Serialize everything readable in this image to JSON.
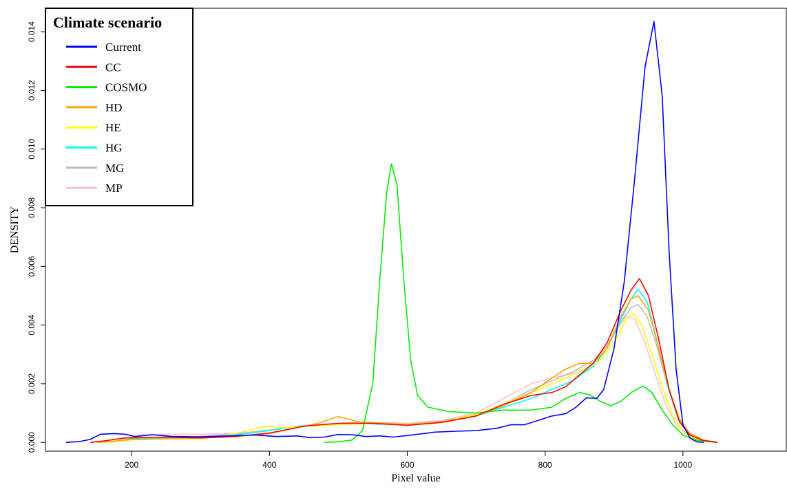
{
  "chart_data": {
    "type": "line",
    "xlabel": "Pixel value",
    "ylabel": "DENSITY",
    "xlim": [
      75,
      1150
    ],
    "ylim": [
      -0.0003,
      0.0148
    ],
    "x_ticks": [
      200,
      400,
      600,
      800,
      1000
    ],
    "x_tick_labels": [
      "200",
      "400",
      "600",
      "800",
      "1000"
    ],
    "y_ticks": [
      0.0,
      0.002,
      0.004,
      0.006,
      0.008,
      0.01,
      0.012,
      0.014
    ],
    "y_tick_labels": [
      "0.000",
      "0.002",
      "0.004",
      "0.006",
      "0.008",
      "0.010",
      "0.012",
      "0.014"
    ],
    "grid": false,
    "legend": {
      "title": "Climate scenario",
      "position": "top-left"
    },
    "series": [
      {
        "name": "Current",
        "color": "#0000ff",
        "points": [
          [
            105,
            0.0
          ],
          [
            125,
            3e-05
          ],
          [
            140,
            0.0001
          ],
          [
            155,
            0.00028
          ],
          [
            175,
            0.0003
          ],
          [
            190,
            0.00028
          ],
          [
            205,
            0.0002
          ],
          [
            230,
            0.00026
          ],
          [
            260,
            0.0002
          ],
          [
            300,
            0.00019
          ],
          [
            340,
            0.00022
          ],
          [
            380,
            0.00025
          ],
          [
            410,
            0.0002
          ],
          [
            440,
            0.00022
          ],
          [
            460,
            0.00016
          ],
          [
            480,
            0.00018
          ],
          [
            500,
            0.00027
          ],
          [
            520,
            0.00026
          ],
          [
            540,
            0.0002
          ],
          [
            560,
            0.00022
          ],
          [
            580,
            0.00018
          ],
          [
            610,
            0.00026
          ],
          [
            640,
            0.00035
          ],
          [
            670,
            0.00038
          ],
          [
            700,
            0.0004
          ],
          [
            730,
            0.00048
          ],
          [
            750,
            0.0006
          ],
          [
            770,
            0.0006
          ],
          [
            790,
            0.00075
          ],
          [
            810,
            0.0009
          ],
          [
            830,
            0.00098
          ],
          [
            845,
            0.0012
          ],
          [
            860,
            0.00152
          ],
          [
            875,
            0.0015
          ],
          [
            885,
            0.0018
          ],
          [
            900,
            0.0032
          ],
          [
            915,
            0.0055
          ],
          [
            930,
            0.009
          ],
          [
            945,
            0.0128
          ],
          [
            958,
            0.01435
          ],
          [
            970,
            0.0118
          ],
          [
            980,
            0.0065
          ],
          [
            990,
            0.0025
          ],
          [
            1000,
            0.0006
          ],
          [
            1010,
            0.00015
          ],
          [
            1020,
            2e-05
          ],
          [
            1030,
            0.0
          ]
        ]
      },
      {
        "name": "CC",
        "color": "#ff0000",
        "points": [
          [
            140,
            0.0
          ],
          [
            160,
            5e-05
          ],
          [
            190,
            0.00015
          ],
          [
            250,
            0.00018
          ],
          [
            300,
            0.00015
          ],
          [
            350,
            0.0002
          ],
          [
            400,
            0.00032
          ],
          [
            450,
            0.00055
          ],
          [
            500,
            0.00065
          ],
          [
            550,
            0.00065
          ],
          [
            600,
            0.00058
          ],
          [
            650,
            0.00068
          ],
          [
            700,
            0.0009
          ],
          [
            740,
            0.0013
          ],
          [
            780,
            0.0016
          ],
          [
            810,
            0.0017
          ],
          [
            830,
            0.0019
          ],
          [
            850,
            0.0023
          ],
          [
            870,
            0.0027
          ],
          [
            890,
            0.0034
          ],
          [
            910,
            0.0045
          ],
          [
            925,
            0.0052
          ],
          [
            937,
            0.00558
          ],
          [
            950,
            0.005
          ],
          [
            965,
            0.0035
          ],
          [
            980,
            0.0018
          ],
          [
            995,
            0.0007
          ],
          [
            1010,
            0.00025
          ],
          [
            1030,
            6e-05
          ],
          [
            1050,
            0.0
          ]
        ]
      },
      {
        "name": "COSMO",
        "color": "#00ee00",
        "points": [
          [
            480,
            0.0
          ],
          [
            500,
            2e-05
          ],
          [
            520,
            8e-05
          ],
          [
            535,
            0.0004
          ],
          [
            550,
            0.002
          ],
          [
            560,
            0.0055
          ],
          [
            570,
            0.0085
          ],
          [
            577,
            0.0095
          ],
          [
            585,
            0.0088
          ],
          [
            595,
            0.0055
          ],
          [
            605,
            0.0028
          ],
          [
            615,
            0.0016
          ],
          [
            630,
            0.0012
          ],
          [
            660,
            0.00105
          ],
          [
            700,
            0.001
          ],
          [
            740,
            0.0011
          ],
          [
            780,
            0.0011
          ],
          [
            810,
            0.0012
          ],
          [
            830,
            0.0015
          ],
          [
            850,
            0.0017
          ],
          [
            865,
            0.00162
          ],
          [
            880,
            0.0014
          ],
          [
            895,
            0.00125
          ],
          [
            910,
            0.0014
          ],
          [
            925,
            0.0017
          ],
          [
            942,
            0.00192
          ],
          [
            955,
            0.0017
          ],
          [
            970,
            0.0011
          ],
          [
            985,
            0.0006
          ],
          [
            1000,
            0.00025
          ],
          [
            1020,
            7e-05
          ],
          [
            1050,
            0.0
          ]
        ]
      },
      {
        "name": "HD",
        "color": "#ffa500",
        "points": [
          [
            150,
            0.0
          ],
          [
            170,
            3e-05
          ],
          [
            200,
            0.0001
          ],
          [
            250,
            0.00012
          ],
          [
            300,
            0.00015
          ],
          [
            350,
            0.0002
          ],
          [
            400,
            0.0003
          ],
          [
            440,
            0.0005
          ],
          [
            470,
            0.00065
          ],
          [
            500,
            0.00088
          ],
          [
            530,
            0.0007
          ],
          [
            570,
            0.00065
          ],
          [
            600,
            0.0006
          ],
          [
            650,
            0.0007
          ],
          [
            700,
            0.0009
          ],
          [
            740,
            0.00125
          ],
          [
            780,
            0.0017
          ],
          [
            810,
            0.0022
          ],
          [
            830,
            0.0025
          ],
          [
            850,
            0.0027
          ],
          [
            870,
            0.0027
          ],
          [
            890,
            0.0032
          ],
          [
            910,
            0.0043
          ],
          [
            925,
            0.0049
          ],
          [
            935,
            0.005
          ],
          [
            950,
            0.0045
          ],
          [
            965,
            0.0032
          ],
          [
            980,
            0.0018
          ],
          [
            995,
            0.0008
          ],
          [
            1010,
            0.0003
          ],
          [
            1030,
            8e-05
          ],
          [
            1050,
            0.0
          ]
        ]
      },
      {
        "name": "HE",
        "color": "#ffff00",
        "points": [
          [
            150,
            0.0
          ],
          [
            175,
            2e-05
          ],
          [
            200,
            8e-05
          ],
          [
            250,
            0.00012
          ],
          [
            300,
            0.00012
          ],
          [
            340,
            0.00025
          ],
          [
            370,
            0.0004
          ],
          [
            395,
            0.00055
          ],
          [
            420,
            0.0005
          ],
          [
            450,
            0.00055
          ],
          [
            500,
            0.0006
          ],
          [
            550,
            0.00065
          ],
          [
            600,
            0.0006
          ],
          [
            650,
            0.0007
          ],
          [
            700,
            0.00095
          ],
          [
            740,
            0.0013
          ],
          [
            780,
            0.0017
          ],
          [
            820,
            0.0021
          ],
          [
            850,
            0.0024
          ],
          [
            880,
            0.0028
          ],
          [
            900,
            0.0034
          ],
          [
            918,
            0.0042
          ],
          [
            928,
            0.0044
          ],
          [
            940,
            0.004
          ],
          [
            955,
            0.003
          ],
          [
            970,
            0.0019
          ],
          [
            985,
            0.0009
          ],
          [
            1000,
            0.00035
          ],
          [
            1020,
            0.0001
          ],
          [
            1045,
            0.0
          ]
        ]
      },
      {
        "name": "HG",
        "color": "#00ffff",
        "points": [
          [
            150,
            0.0
          ],
          [
            175,
            4e-05
          ],
          [
            200,
            0.00012
          ],
          [
            250,
            0.00016
          ],
          [
            300,
            0.00018
          ],
          [
            350,
            0.00025
          ],
          [
            400,
            0.0004
          ],
          [
            440,
            0.00055
          ],
          [
            480,
            0.0006
          ],
          [
            520,
            0.00065
          ],
          [
            560,
            0.00062
          ],
          [
            600,
            0.0006
          ],
          [
            650,
            0.0007
          ],
          [
            700,
            0.0009
          ],
          [
            740,
            0.0012
          ],
          [
            780,
            0.0015
          ],
          [
            810,
            0.0018
          ],
          [
            840,
            0.0021
          ],
          [
            870,
            0.0026
          ],
          [
            890,
            0.0032
          ],
          [
            910,
            0.0042
          ],
          [
            925,
            0.0049
          ],
          [
            935,
            0.00522
          ],
          [
            948,
            0.0048
          ],
          [
            962,
            0.0035
          ],
          [
            978,
            0.0019
          ],
          [
            993,
            0.0008
          ],
          [
            1010,
            0.0003
          ],
          [
            1030,
            8e-05
          ],
          [
            1050,
            0.0
          ]
        ]
      },
      {
        "name": "MG",
        "color": "#bbbbbb",
        "points": [
          [
            160,
            0.0
          ],
          [
            180,
            4e-05
          ],
          [
            200,
            0.0001
          ],
          [
            250,
            0.00015
          ],
          [
            300,
            0.0002
          ],
          [
            350,
            0.00028
          ],
          [
            400,
            0.00042
          ],
          [
            440,
            0.00055
          ],
          [
            480,
            0.00062
          ],
          [
            520,
            0.00068
          ],
          [
            560,
            0.00065
          ],
          [
            600,
            0.00062
          ],
          [
            650,
            0.00072
          ],
          [
            700,
            0.00095
          ],
          [
            740,
            0.0013
          ],
          [
            780,
            0.0018
          ],
          [
            810,
            0.0021
          ],
          [
            840,
            0.0024
          ],
          [
            870,
            0.0028
          ],
          [
            890,
            0.0033
          ],
          [
            910,
            0.0041
          ],
          [
            925,
            0.0046
          ],
          [
            935,
            0.0047
          ],
          [
            948,
            0.0043
          ],
          [
            962,
            0.0033
          ],
          [
            978,
            0.0019
          ],
          [
            995,
            0.0008
          ],
          [
            1010,
            0.0003
          ],
          [
            1030,
            8e-05
          ],
          [
            1050,
            0.0
          ]
        ]
      },
      {
        "name": "MP",
        "color": "#ffc0cb",
        "points": [
          [
            170,
            0.0
          ],
          [
            190,
            0.0001
          ],
          [
            210,
            0.00025
          ],
          [
            250,
            0.00028
          ],
          [
            300,
            0.00028
          ],
          [
            350,
            0.0003
          ],
          [
            400,
            0.00042
          ],
          [
            440,
            0.00055
          ],
          [
            480,
            0.0006
          ],
          [
            520,
            0.00065
          ],
          [
            560,
            0.00068
          ],
          [
            600,
            0.00065
          ],
          [
            650,
            0.00075
          ],
          [
            700,
            0.001
          ],
          [
            740,
            0.0015
          ],
          [
            780,
            0.002
          ],
          [
            810,
            0.0022
          ],
          [
            830,
            0.0023
          ],
          [
            850,
            0.0024
          ],
          [
            870,
            0.0027
          ],
          [
            890,
            0.0033
          ],
          [
            905,
            0.0039
          ],
          [
            918,
            0.0043
          ],
          [
            930,
            0.0042
          ],
          [
            945,
            0.0034
          ],
          [
            960,
            0.0023
          ],
          [
            975,
            0.0013
          ],
          [
            990,
            0.0006
          ],
          [
            1010,
            0.0002
          ],
          [
            1030,
            5e-05
          ],
          [
            1050,
            0.0
          ]
        ]
      }
    ]
  }
}
